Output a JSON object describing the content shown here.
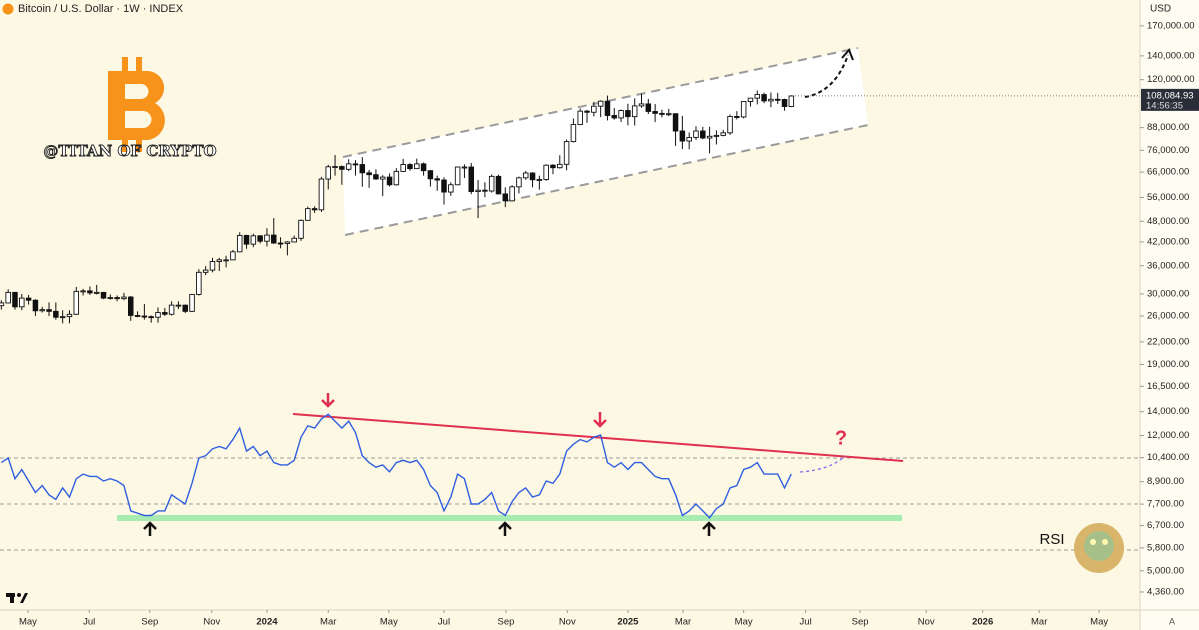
{
  "header": {
    "title": "Bitcoin / U.S. Dollar · 1W · INDEX",
    "currency": "USD"
  },
  "chart_data": {
    "type": "candlestick",
    "watermark": "@TITAN OF CRYPTO",
    "open": [
      27800,
      28300,
      30300,
      27600,
      29200,
      28800,
      26900,
      27100,
      26800,
      25800,
      25900,
      26300,
      30500,
      30600,
      30200,
      30300,
      29200,
      29300,
      29100,
      29400,
      26100,
      26000,
      25900,
      25800,
      26600,
      26300,
      27900,
      27900,
      26800,
      29900,
      34500,
      35000,
      37000,
      37400,
      37400,
      39400,
      43800,
      41400,
      43700,
      42200,
      43900,
      41700,
      41600,
      42000,
      43000,
      48300,
      52100,
      51700,
      63100,
      68300,
      68400,
      67200,
      69600,
      69300,
      65700,
      64900,
      63100,
      63900,
      60800,
      66300,
      69300,
      67500,
      69600,
      66600,
      63200,
      62700,
      58000,
      60800,
      68200,
      68200,
      58200,
      58700,
      58400,
      64200,
      57300,
      54800,
      60000,
      63600,
      65600,
      62800,
      62900,
      69000,
      67900,
      69400,
      80400,
      89800,
      97900,
      97200,
      101100,
      104400,
      95200,
      93700,
      98300,
      94500,
      101300,
      102600,
      97700,
      96500,
      96100,
      96300,
      86100,
      80700,
      82600,
      86100,
      82300,
      83200,
      83700,
      85100,
      94600,
      94300,
      104200,
      106500,
      109000,
      104600,
      105700,
      105600,
      100900
    ],
    "high": [
      28800,
      30900,
      30400,
      30000,
      29800,
      29000,
      27600,
      28400,
      28400,
      27000,
      27000,
      31400,
      31000,
      31500,
      31800,
      30400,
      29900,
      29700,
      30200,
      29600,
      26800,
      28100,
      26100,
      27500,
      27400,
      28600,
      28600,
      28000,
      30000,
      35200,
      35900,
      37900,
      37900,
      38400,
      39900,
      44700,
      44000,
      44300,
      43900,
      45900,
      49000,
      43300,
      42200,
      43800,
      48600,
      52800,
      52900,
      64000,
      69200,
      73700,
      68900,
      71700,
      71300,
      72700,
      66900,
      67200,
      64700,
      65400,
      67700,
      71900,
      70000,
      72000,
      70200,
      66900,
      64500,
      63800,
      61800,
      68400,
      69400,
      70000,
      62700,
      61800,
      65000,
      64900,
      59800,
      60600,
      64100,
      66500,
      66000,
      64500,
      69400,
      69500,
      73600,
      81500,
      93400,
      99600,
      98700,
      104000,
      105000,
      108300,
      99900,
      98900,
      102700,
      106400,
      109600,
      106000,
      102500,
      98800,
      99400,
      96500,
      95000,
      85300,
      88800,
      88500,
      88500,
      86500,
      86700,
      95800,
      97900,
      104300,
      106000,
      111900,
      110400,
      110500,
      110200,
      106100,
      108500
    ],
    "low": [
      27100,
      28200,
      27100,
      27000,
      28000,
      26000,
      26600,
      26000,
      25400,
      24800,
      24800,
      26200,
      29700,
      29800,
      29900,
      29000,
      28900,
      28600,
      28800,
      25200,
      25800,
      25400,
      24900,
      24900,
      26000,
      26100,
      27200,
      26500,
      26700,
      29700,
      33900,
      34500,
      34800,
      35600,
      37500,
      39300,
      40200,
      40600,
      41600,
      40800,
      41500,
      40300,
      38500,
      41900,
      42300,
      48200,
      50700,
      51000,
      59000,
      64500,
      60800,
      66400,
      64500,
      60000,
      59600,
      62800,
      56500,
      60100,
      60500,
      66000,
      66600,
      67400,
      64500,
      60100,
      58500,
      53500,
      56600,
      60600,
      63500,
      57200,
      49000,
      56100,
      57800,
      57200,
      52600,
      54600,
      57500,
      62800,
      59800,
      58900,
      62400,
      65100,
      67500,
      66800,
      79900,
      89400,
      90800,
      94600,
      94200,
      92200,
      92600,
      91300,
      89300,
      89200,
      100100,
      96100,
      91200,
      94100,
      94800,
      78200,
      76600,
      76500,
      81200,
      81600,
      74500,
      78900,
      83200,
      83900,
      92800,
      93400,
      100800,
      102300,
      103100,
      100400,
      102600,
      98200,
      100500
    ],
    "close": [
      28300,
      30300,
      27600,
      29200,
      28800,
      26900,
      27100,
      26800,
      25800,
      25900,
      26300,
      30500,
      30600,
      30200,
      30300,
      29200,
      29300,
      29100,
      29400,
      26100,
      26000,
      25900,
      25800,
      26600,
      26300,
      27900,
      27900,
      26800,
      29900,
      34500,
      35000,
      37000,
      37400,
      37400,
      39400,
      43800,
      41400,
      43700,
      42200,
      43900,
      41700,
      41600,
      42000,
      43000,
      48300,
      52100,
      51700,
      63100,
      68300,
      68400,
      67200,
      69600,
      69300,
      65700,
      64900,
      63100,
      63900,
      60800,
      66300,
      69300,
      67500,
      69600,
      66600,
      63200,
      62700,
      58000,
      60800,
      68200,
      68200,
      58200,
      58700,
      58400,
      64200,
      57300,
      54800,
      60000,
      63600,
      65600,
      62800,
      62900,
      69000,
      67900,
      69400,
      80400,
      89800,
      97900,
      97200,
      101100,
      104400,
      95200,
      93700,
      98300,
      94500,
      101300,
      102600,
      97700,
      96500,
      96100,
      96300,
      86100,
      80700,
      82600,
      86100,
      82300,
      83200,
      83700,
      85100,
      94600,
      94300,
      104200,
      106500,
      109000,
      104600,
      105700,
      105600,
      100900,
      108000
    ],
    "colors": {
      "up": "#ffffff",
      "down": "#111111"
    },
    "log_scale": true,
    "ylim": [
      3830,
      201000
    ],
    "yticks": [
      {
        "value": 170000,
        "label": "170,000.00"
      },
      {
        "value": 140000,
        "label": "140,000.00"
      },
      {
        "value": 120000,
        "label": "120,000.00"
      },
      {
        "value": 88000,
        "label": "88,000.00"
      },
      {
        "value": 76000,
        "label": "76,000.00"
      },
      {
        "value": 66000,
        "label": "66,000.00"
      },
      {
        "value": 56000,
        "label": "56,000.00"
      },
      {
        "value": 48000,
        "label": "48,000.00"
      },
      {
        "value": 42000,
        "label": "42,000.00"
      },
      {
        "value": 36000,
        "label": "36,000.00"
      },
      {
        "value": 30000,
        "label": "30,000.00"
      },
      {
        "value": 26000,
        "label": "26,000.00"
      },
      {
        "value": 22000,
        "label": "22,000.00"
      },
      {
        "value": 19000,
        "label": "19,000.00"
      },
      {
        "value": 16500,
        "label": "16,500.00"
      },
      {
        "value": 14000,
        "label": "14,000.00"
      },
      {
        "value": 12000,
        "label": "12,000.00"
      },
      {
        "value": 10400,
        "label": "10,400.00"
      },
      {
        "value": 8900,
        "label": "8,900.00"
      },
      {
        "value": 7700,
        "label": "7,700.00"
      },
      {
        "value": 6700,
        "label": "6,700.00"
      },
      {
        "value": 5800,
        "label": "5,800.00"
      },
      {
        "value": 5000,
        "label": "5,000.00"
      },
      {
        "value": 4360,
        "label": "4,360.00"
      }
    ],
    "xlim": [
      -0.2,
      167.2
    ],
    "xticks": [
      {
        "value": 3.9,
        "label": "May"
      },
      {
        "value": 12.9,
        "label": "Jul"
      },
      {
        "value": 21.8,
        "label": "Sep"
      },
      {
        "value": 30.9,
        "label": "Nov"
      },
      {
        "value": 39,
        "label": "2024"
      },
      {
        "value": 48,
        "label": "Mar"
      },
      {
        "value": 56.9,
        "label": "May"
      },
      {
        "value": 65,
        "label": "Jul"
      },
      {
        "value": 74.1,
        "label": "Sep"
      },
      {
        "value": 83.1,
        "label": "Nov"
      },
      {
        "value": 92,
        "label": "2025"
      },
      {
        "value": 100.1,
        "label": "Mar"
      },
      {
        "value": 109,
        "label": "May"
      },
      {
        "value": 118.1,
        "label": "Jul"
      },
      {
        "value": 126.1,
        "label": "Sep"
      },
      {
        "value": 135.8,
        "label": "Nov"
      },
      {
        "value": 144.1,
        "label": "2026"
      },
      {
        "value": 152.4,
        "label": "Mar"
      },
      {
        "value": 161.2,
        "label": "May"
      }
    ],
    "last_price": {
      "value": 108084.93,
      "label": "108,084.93"
    },
    "countdown": "14:56:35",
    "question": "?",
    "scale_mode": "A",
    "rsi": {
      "label": "RSI",
      "color": "#2f5fe0",
      "ylim": [
        8,
        100
      ],
      "levels": [
        70,
        50,
        30
      ],
      "values": [
        68,
        70,
        61,
        65,
        60,
        55,
        58,
        54,
        52,
        57,
        53,
        61,
        63,
        62,
        62,
        60,
        61,
        60,
        58,
        47,
        46,
        45,
        45,
        47,
        47,
        54,
        52,
        50,
        59,
        70,
        71,
        74,
        75,
        74,
        78,
        83,
        73,
        75,
        71,
        73,
        68,
        67,
        67,
        69,
        79,
        84,
        83,
        87,
        89,
        86,
        83,
        86,
        81,
        71,
        68,
        66,
        67,
        64,
        68,
        69,
        68,
        69,
        65,
        58,
        55,
        47,
        53,
        63,
        61,
        50,
        50,
        52,
        55,
        47,
        45,
        51,
        55,
        57,
        53,
        54,
        60,
        59,
        63,
        73,
        76,
        78,
        77,
        79,
        80,
        68,
        66,
        68,
        65,
        68,
        68,
        65,
        62,
        61,
        61,
        54,
        45,
        47,
        50,
        47,
        44,
        48,
        50,
        57,
        58,
        65,
        66,
        68,
        63,
        63,
        63,
        57,
        63
      ]
    }
  }
}
